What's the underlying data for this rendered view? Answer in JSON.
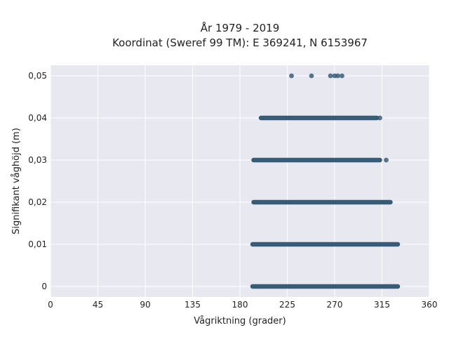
{
  "chart_data": {
    "type": "scatter",
    "title_lines": [
      "År 1979 - 2019",
      "Koordinat (Sweref 99 TM): E 369241, N 6153967"
    ],
    "xlabel": "Vågriktning (grader)",
    "ylabel": "Signifikant våghöjd (m)",
    "xlim": [
      0,
      360
    ],
    "ylim": [
      -0.0025,
      0.0525
    ],
    "x_ticks": [
      0,
      45,
      90,
      135,
      180,
      225,
      270,
      315,
      360
    ],
    "x_tick_labels": [
      "0",
      "45",
      "90",
      "135",
      "180",
      "225",
      "270",
      "315",
      "360"
    ],
    "y_ticks": [
      0,
      0.01,
      0.02,
      0.03,
      0.04,
      0.05
    ],
    "y_tick_labels": [
      "0",
      "0,01",
      "0,02",
      "0,03",
      "0,04",
      "0,05"
    ],
    "grid": true,
    "point_color": "#2e5470",
    "plot_background": "#e8e8f1",
    "bands": [
      {
        "y": 0,
        "x_start": 192,
        "x_end": 330
      },
      {
        "y": 0.01,
        "x_start": 192,
        "x_end": 330
      },
      {
        "y": 0.02,
        "x_start": 193,
        "x_end": 323
      },
      {
        "y": 0.03,
        "x_start": 193,
        "x_end": 313
      },
      {
        "y": 0.04,
        "x_start": 200,
        "x_end": 310
      }
    ],
    "points": [
      {
        "x": 229,
        "y": 0.05
      },
      {
        "x": 248,
        "y": 0.05
      },
      {
        "x": 266,
        "y": 0.05
      },
      {
        "x": 270,
        "y": 0.05
      },
      {
        "x": 273,
        "y": 0.05
      },
      {
        "x": 277,
        "y": 0.05
      },
      {
        "x": 319,
        "y": 0.03
      },
      {
        "x": 313,
        "y": 0.04
      }
    ]
  }
}
